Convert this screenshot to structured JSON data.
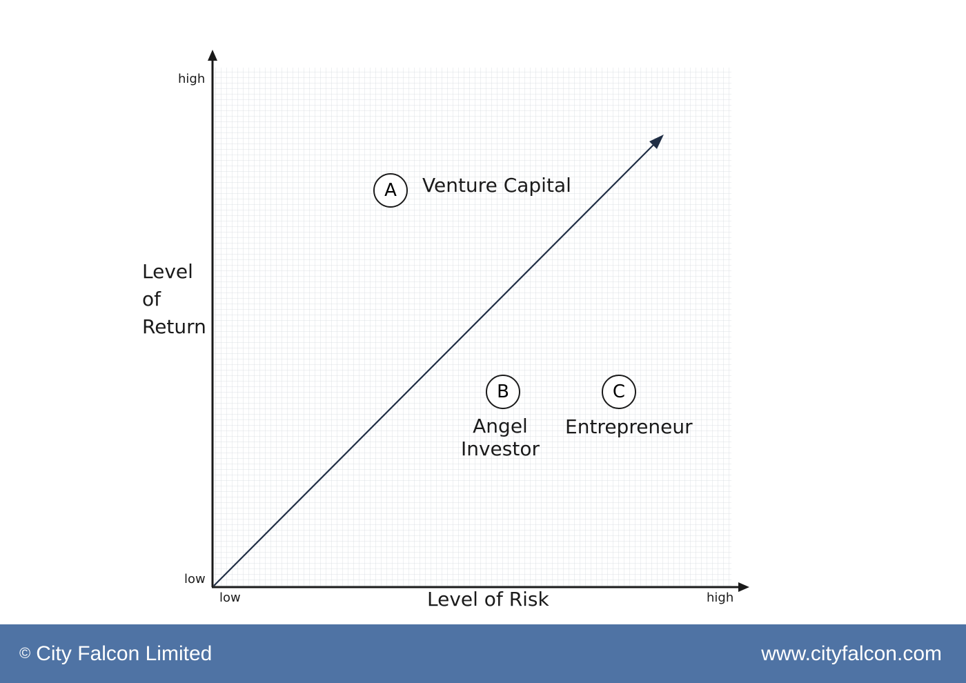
{
  "diagram": {
    "y_axis": {
      "title_lines": [
        "Level",
        "of",
        "Return"
      ],
      "high": "high",
      "low": "low"
    },
    "x_axis": {
      "title": "Level of Risk",
      "low": "low",
      "high": "high"
    },
    "markers": [
      {
        "letter": "A",
        "label": "Venture Capital"
      },
      {
        "letter": "B",
        "label_lines": [
          "Angel",
          "Investor"
        ]
      },
      {
        "letter": "C",
        "label": "Entrepreneur"
      }
    ]
  },
  "footer": {
    "copyright_symbol": "©",
    "copyright": "City Falcon Limited",
    "url": "www.cityfalcon.com"
  },
  "colors": {
    "footer_bg": "#4f73a4",
    "axis": "#1a1a1a",
    "trend_line": "#1f2d44",
    "grid": "#d4d9de"
  }
}
